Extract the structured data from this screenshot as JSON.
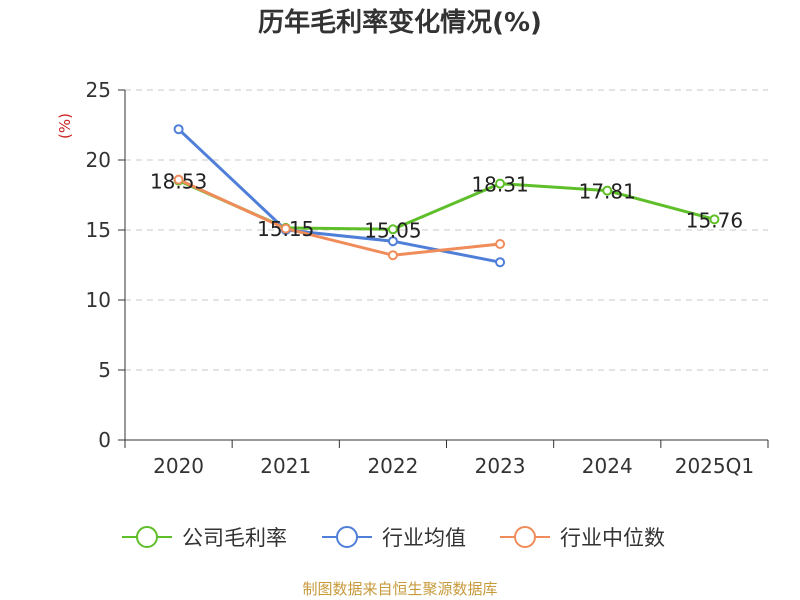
{
  "chart_data": {
    "type": "line",
    "title": "历年毛利率变化情况(%)",
    "ylabel": "(%)",
    "xlabel": "",
    "categories": [
      "2020",
      "2021",
      "2022",
      "2023",
      "2024",
      "2025Q1"
    ],
    "ylim": [
      0,
      25
    ],
    "yticks": [
      0,
      5,
      10,
      15,
      20,
      25
    ],
    "grid": true,
    "legend_position": "bottom",
    "series": [
      {
        "name": "公司毛利率",
        "color": "#5fbf2a",
        "values": [
          18.53,
          15.15,
          15.05,
          18.31,
          17.81,
          15.76
        ],
        "labels": [
          "18.53",
          "15.15",
          "15.05",
          "18.31",
          "17.81",
          "15.76"
        ]
      },
      {
        "name": "行业均值",
        "color": "#4f7fd8",
        "values": [
          22.2,
          15.0,
          14.2,
          12.7,
          null,
          null
        ]
      },
      {
        "name": "行业中位数",
        "color": "#f08c5a",
        "values": [
          18.6,
          15.1,
          13.2,
          14.0,
          null,
          null
        ]
      }
    ]
  },
  "footer": "制图数据来自恒生聚源数据库"
}
